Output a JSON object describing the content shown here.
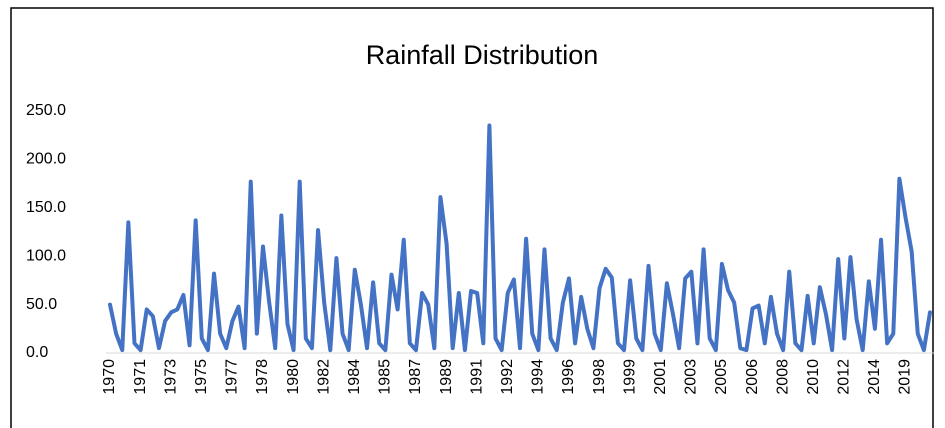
{
  "chart_data": {
    "type": "line",
    "title": "Rainfall Distribution",
    "categories": [
      "1970",
      null,
      null,
      null,
      null,
      "1971",
      null,
      null,
      null,
      null,
      "1973",
      null,
      null,
      null,
      null,
      "1975",
      null,
      null,
      null,
      null,
      "1977",
      null,
      null,
      null,
      null,
      "1978",
      null,
      null,
      null,
      null,
      "1980",
      null,
      null,
      null,
      null,
      "1982",
      null,
      null,
      null,
      null,
      "1984",
      null,
      null,
      null,
      null,
      "1985",
      null,
      null,
      null,
      null,
      "1987",
      null,
      null,
      null,
      null,
      "1989",
      null,
      null,
      null,
      null,
      "1991",
      null,
      null,
      null,
      null,
      "1992",
      null,
      null,
      null,
      null,
      "1994",
      null,
      null,
      null,
      null,
      "1996",
      null,
      null,
      null,
      null,
      "1998",
      null,
      null,
      null,
      null,
      "1999",
      null,
      null,
      null,
      null,
      "2001",
      null,
      null,
      null,
      null,
      "2003",
      null,
      null,
      null,
      null,
      "2005",
      null,
      null,
      null,
      null,
      "2006",
      null,
      null,
      null,
      null,
      "2008",
      null,
      null,
      null,
      null,
      "2010",
      null,
      null,
      null,
      null,
      "2012",
      null,
      null,
      null,
      null,
      "2014",
      null,
      null,
      null,
      null,
      "2019",
      null,
      null,
      null,
      null
    ],
    "values": [
      50,
      20,
      3,
      135,
      10,
      3,
      45,
      38,
      5,
      33,
      42,
      45,
      60,
      8,
      137,
      15,
      3,
      82,
      20,
      5,
      33,
      48,
      5,
      177,
      20,
      110,
      53,
      5,
      142,
      30,
      3,
      177,
      15,
      5,
      127,
      52,
      3,
      98,
      20,
      3,
      86,
      50,
      5,
      73,
      10,
      3,
      81,
      45,
      117,
      10,
      3,
      62,
      50,
      5,
      161,
      113,
      5,
      62,
      3,
      64,
      62,
      10,
      235,
      15,
      3,
      62,
      76,
      5,
      118,
      20,
      3,
      107,
      15,
      3,
      52,
      77,
      10,
      58,
      25,
      5,
      67,
      87,
      78,
      10,
      3,
      75,
      15,
      3,
      90,
      20,
      3,
      72,
      40,
      5,
      77,
      84,
      10,
      107,
      15,
      3,
      92,
      65,
      52,
      5,
      3,
      46,
      49,
      10,
      58,
      20,
      3,
      84,
      10,
      3,
      59,
      10,
      68,
      40,
      3,
      97,
      15,
      99,
      35,
      3,
      74,
      25,
      117,
      10,
      20,
      180,
      140,
      105,
      20,
      3,
      42
    ],
    "color": "#4472c4",
    "ylim": [
      0,
      250
    ],
    "yticks": [
      {
        "value": 0,
        "label": "0.0"
      },
      {
        "value": 50,
        "label": "50.0"
      },
      {
        "value": 100,
        "label": "100.0"
      },
      {
        "value": 150,
        "label": "150.0"
      },
      {
        "value": 200,
        "label": "200.0"
      },
      {
        "value": 250,
        "label": "250.0"
      }
    ],
    "grid": false
  }
}
